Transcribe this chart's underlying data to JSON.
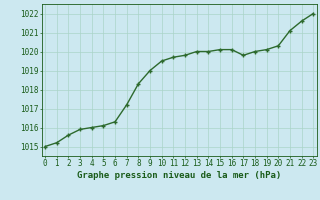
{
  "x": [
    0,
    1,
    2,
    3,
    4,
    5,
    6,
    7,
    8,
    9,
    10,
    11,
    12,
    13,
    14,
    15,
    16,
    17,
    18,
    19,
    20,
    21,
    22,
    23
  ],
  "y": [
    1015.0,
    1015.2,
    1015.6,
    1015.9,
    1016.0,
    1016.1,
    1016.3,
    1017.2,
    1018.3,
    1019.0,
    1019.5,
    1019.7,
    1019.8,
    1020.0,
    1020.0,
    1020.1,
    1020.1,
    1019.8,
    1020.0,
    1020.1,
    1020.3,
    1021.1,
    1021.6,
    1022.0
  ],
  "line_color": "#2d6a2d",
  "marker": "+",
  "marker_size": 3,
  "bg_color": "#cce8f0",
  "grid_color": "#aad4c8",
  "text_color": "#1a5c1a",
  "xlabel": "Graphe pression niveau de la mer (hPa)",
  "ylim_min": 1014.5,
  "ylim_max": 1022.5,
  "ytick_min": 1015,
  "ytick_max": 1022,
  "xtick_labels": [
    "0",
    "1",
    "2",
    "3",
    "4",
    "5",
    "6",
    "7",
    "8",
    "9",
    "10",
    "11",
    "12",
    "13",
    "14",
    "15",
    "16",
    "17",
    "18",
    "19",
    "20",
    "21",
    "22",
    "23"
  ],
  "xlabel_fontsize": 6.5,
  "tick_fontsize": 5.5,
  "linewidth": 1.0,
  "marker_color": "#2d6a2d",
  "marker_linewidth": 1.0
}
